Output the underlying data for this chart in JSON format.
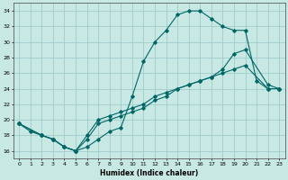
{
  "title": "",
  "xlabel": "Humidex (Indice chaleur)",
  "ylabel": "",
  "xlim": [
    -0.5,
    23.5
  ],
  "ylim": [
    15,
    35
  ],
  "yticks": [
    16,
    18,
    20,
    22,
    24,
    26,
    28,
    30,
    32,
    34
  ],
  "xticks": [
    0,
    1,
    2,
    3,
    4,
    5,
    6,
    7,
    8,
    9,
    10,
    11,
    12,
    13,
    14,
    15,
    16,
    17,
    18,
    19,
    20,
    21,
    22,
    23
  ],
  "background_color": "#c8e8e4",
  "grid_color": "#a0cccc",
  "line_color": "#006666",
  "series": [
    {
      "x": [
        0,
        1,
        2,
        3,
        4,
        5,
        6,
        7,
        8,
        9,
        10,
        11,
        12,
        13,
        14,
        15,
        16,
        17,
        18,
        19,
        20,
        21,
        22,
        23
      ],
      "y": [
        19.5,
        18.5,
        18,
        17.5,
        16.5,
        16,
        16.5,
        17.5,
        18.5,
        19,
        23,
        27.5,
        30,
        31.5,
        33.5,
        34,
        34,
        33,
        32,
        31.5,
        31.5,
        25,
        24,
        24
      ]
    },
    {
      "x": [
        0,
        2,
        3,
        4,
        5,
        6,
        7,
        8,
        9,
        10,
        11,
        12,
        13,
        14,
        15,
        16,
        17,
        18,
        19,
        20,
        22,
        23
      ],
      "y": [
        19.5,
        18,
        17.5,
        16.5,
        16,
        18,
        20,
        20.5,
        21,
        21.5,
        22,
        23,
        23.5,
        24,
        24.5,
        25,
        25.5,
        26.5,
        28.5,
        29,
        24.5,
        24
      ]
    },
    {
      "x": [
        0,
        2,
        3,
        4,
        5,
        6,
        7,
        8,
        9,
        10,
        11,
        12,
        13,
        14,
        15,
        16,
        17,
        18,
        19,
        20,
        22,
        23
      ],
      "y": [
        19.5,
        18,
        17.5,
        16.5,
        16,
        17.5,
        19.5,
        20,
        20.5,
        21,
        21.5,
        22.5,
        23,
        24,
        24.5,
        25,
        25.5,
        26,
        26.5,
        27,
        24,
        24
      ]
    }
  ]
}
